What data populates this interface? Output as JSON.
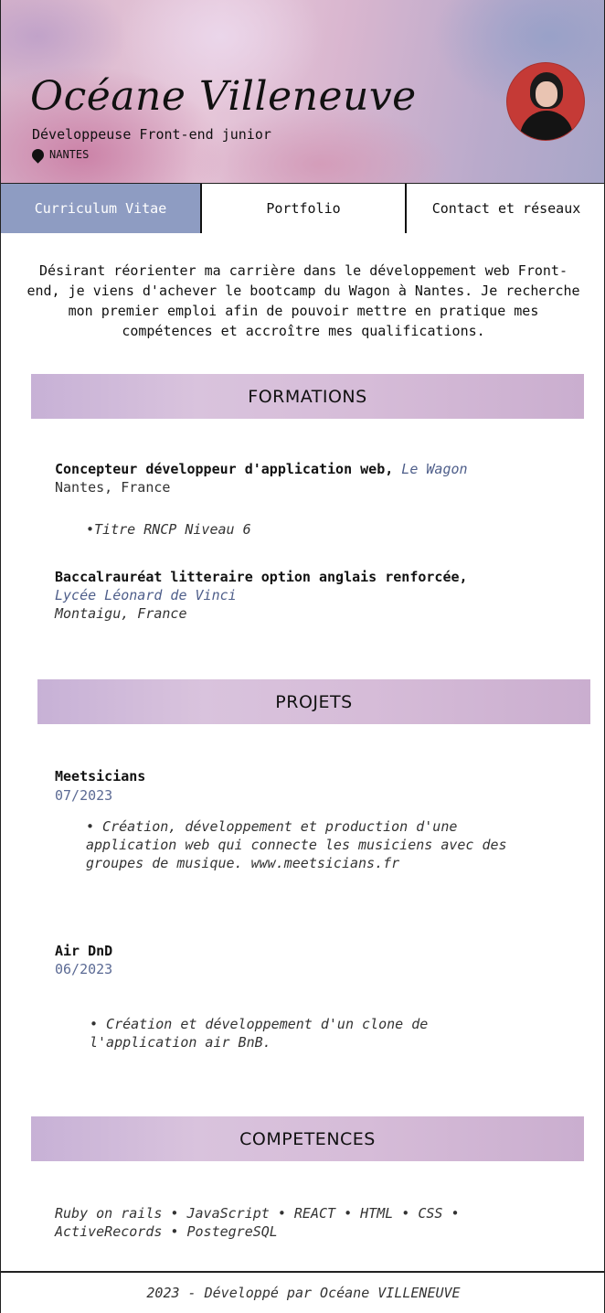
{
  "header": {
    "name": "Océane Villeneuve",
    "role": "Développeuse Front-end junior",
    "location": "NANTES"
  },
  "nav": {
    "tabs": [
      {
        "label": "Curriculum Vitae",
        "active": true
      },
      {
        "label": "Portfolio",
        "active": false
      },
      {
        "label": "Contact et réseaux",
        "active": false
      }
    ]
  },
  "intro": "Désirant réorienter ma carrière dans le développement web Front-end, je viens d'achever le bootcamp du Wagon à Nantes. Je recherche mon premier emploi afin de pouvoir mettre en pratique mes compétences et accroître mes qualifications.",
  "formations": {
    "title": "FORMATIONS",
    "items": [
      {
        "degree": "Concepteur développeur d'application web,",
        "school": "Le Wagon",
        "place": "Nantes, France",
        "detail": "•Titre RNCP Niveau 6"
      },
      {
        "degree": "Baccalrauréat litteraire option anglais renforcée,",
        "school": "Lycée Léonard de Vinci",
        "place": "Montaigu, France"
      }
    ]
  },
  "projets": {
    "title": "PROJETS",
    "items": [
      {
        "name": "Meetsicians",
        "date": "07/2023",
        "desc_lines": [
          "• Création, développement et production d'une",
          "application web qui connecte les musiciens avec des",
          "groupes de musique. www.meetsicians.fr"
        ]
      },
      {
        "name": "Air DnD",
        "date": "06/2023",
        "desc_lines": [
          "• Création et développement d'un clone de",
          "l'application air BnB."
        ]
      }
    ]
  },
  "competences": {
    "title": "COMPETENCES",
    "lines": [
      "Ruby on rails • JavaScript • REACT • HTML • CSS •",
      "ActiveRecords • PostegreSQL"
    ]
  },
  "footer": "2023 - Développé par Océane VILLENEUVE"
}
